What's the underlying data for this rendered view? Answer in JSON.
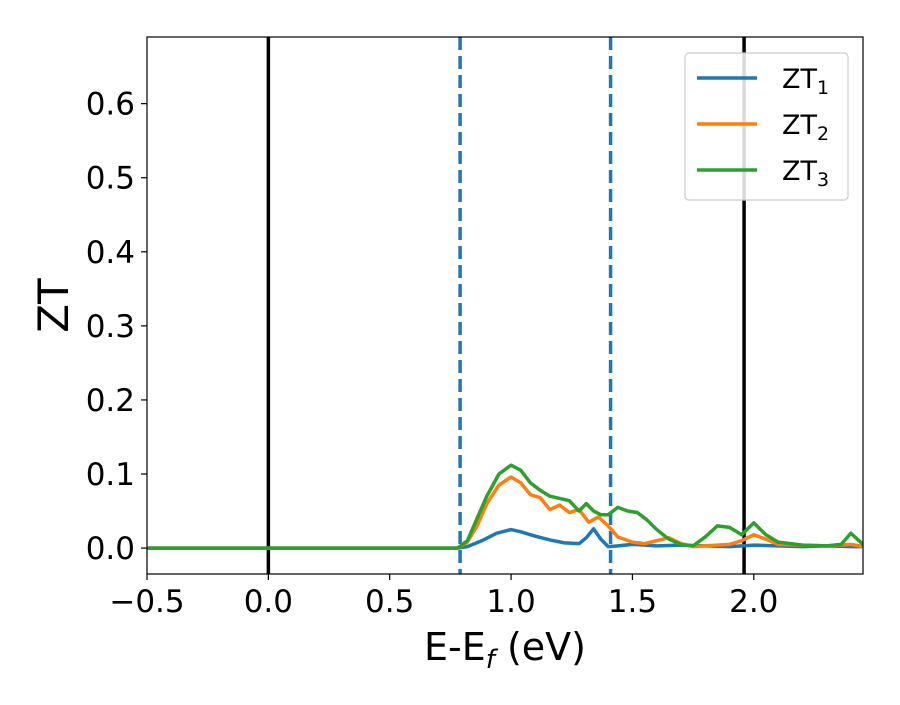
{
  "chart_data": {
    "type": "line",
    "xlabel": "E-E",
    "xlabel_sub": "f",
    "xlabel_unit": " (eV)",
    "ylabel": "ZT",
    "xlim": [
      -0.5,
      2.45
    ],
    "ylim": [
      -0.035,
      0.69
    ],
    "xticks": [
      -0.5,
      0.0,
      0.5,
      1.0,
      1.5,
      2.0
    ],
    "xtick_labels": [
      "−0.5",
      "0.0",
      "0.5",
      "1.0",
      "1.5",
      "2.0"
    ],
    "yticks": [
      0.0,
      0.1,
      0.2,
      0.3,
      0.4,
      0.5,
      0.6
    ],
    "ytick_labels": [
      "0.0",
      "0.1",
      "0.2",
      "0.3",
      "0.4",
      "0.5",
      "0.6"
    ],
    "grid": false,
    "legend_position": "top-right",
    "vertical_lines": [
      {
        "x": 0.0,
        "style": "solid",
        "color": "#000000"
      },
      {
        "x": 0.79,
        "style": "dashed",
        "color": "#1f77b4"
      },
      {
        "x": 1.41,
        "style": "dashed",
        "color": "#1f77b4"
      },
      {
        "x": 1.96,
        "style": "solid",
        "color": "#000000"
      }
    ],
    "series": [
      {
        "name": "ZT",
        "name_sub": "1",
        "color": "#1f77b4",
        "x": [
          -0.5,
          0.0,
          0.5,
          0.78,
          0.82,
          0.88,
          0.94,
          1.0,
          1.04,
          1.1,
          1.16,
          1.22,
          1.28,
          1.31,
          1.34,
          1.37,
          1.4,
          1.44,
          1.5,
          1.6,
          1.7,
          1.8,
          1.9,
          2.0,
          2.1,
          2.2,
          2.3,
          2.4,
          2.45
        ],
        "y": [
          0.0,
          0.0,
          0.0,
          0.0,
          0.002,
          0.01,
          0.02,
          0.025,
          0.022,
          0.016,
          0.011,
          0.007,
          0.006,
          0.014,
          0.026,
          0.012,
          0.002,
          0.003,
          0.005,
          0.003,
          0.004,
          0.003,
          0.002,
          0.004,
          0.003,
          0.002,
          0.003,
          0.002,
          0.002
        ]
      },
      {
        "name": "ZT",
        "name_sub": "2",
        "color": "#ff7f0e",
        "x": [
          -0.5,
          0.0,
          0.5,
          0.78,
          0.82,
          0.86,
          0.9,
          0.95,
          1.0,
          1.04,
          1.08,
          1.12,
          1.16,
          1.2,
          1.24,
          1.28,
          1.32,
          1.36,
          1.4,
          1.44,
          1.5,
          1.55,
          1.6,
          1.65,
          1.7,
          1.75,
          1.8,
          1.9,
          1.95,
          2.0,
          2.05,
          2.1,
          2.2,
          2.3,
          2.4,
          2.45
        ],
        "y": [
          0.0,
          0.0,
          0.0,
          0.0,
          0.008,
          0.03,
          0.06,
          0.085,
          0.096,
          0.088,
          0.072,
          0.068,
          0.052,
          0.058,
          0.048,
          0.052,
          0.035,
          0.042,
          0.03,
          0.015,
          0.008,
          0.006,
          0.01,
          0.014,
          0.006,
          0.002,
          0.003,
          0.005,
          0.01,
          0.018,
          0.012,
          0.005,
          0.004,
          0.003,
          0.005,
          0.002
        ]
      },
      {
        "name": "ZT",
        "name_sub": "3",
        "color": "#2ca02c",
        "x": [
          -0.5,
          0.0,
          0.5,
          0.78,
          0.82,
          0.86,
          0.9,
          0.95,
          1.0,
          1.04,
          1.08,
          1.12,
          1.16,
          1.2,
          1.24,
          1.28,
          1.31,
          1.34,
          1.37,
          1.4,
          1.44,
          1.48,
          1.52,
          1.56,
          1.6,
          1.65,
          1.7,
          1.75,
          1.8,
          1.85,
          1.9,
          1.95,
          2.0,
          2.05,
          2.1,
          2.2,
          2.3,
          2.36,
          2.4,
          2.45
        ],
        "y": [
          0.0,
          0.0,
          0.0,
          0.0,
          0.01,
          0.04,
          0.07,
          0.1,
          0.112,
          0.105,
          0.088,
          0.078,
          0.07,
          0.067,
          0.064,
          0.05,
          0.06,
          0.05,
          0.045,
          0.045,
          0.055,
          0.05,
          0.048,
          0.038,
          0.025,
          0.012,
          0.005,
          0.003,
          0.015,
          0.03,
          0.028,
          0.018,
          0.034,
          0.018,
          0.008,
          0.004,
          0.003,
          0.005,
          0.02,
          0.005
        ]
      }
    ]
  }
}
